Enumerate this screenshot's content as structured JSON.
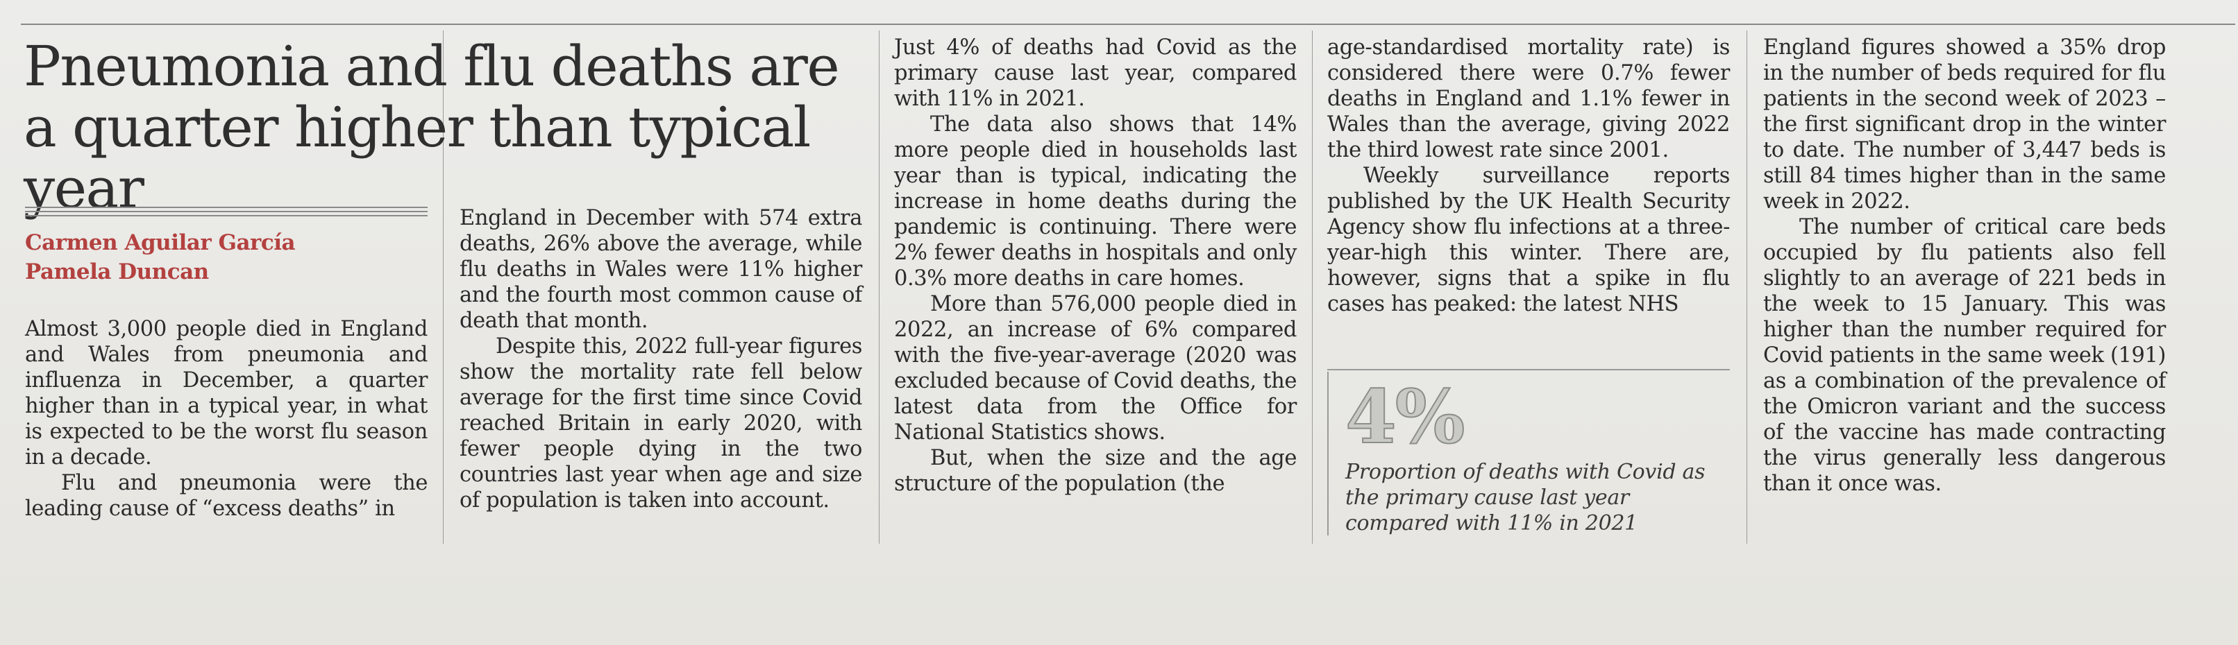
{
  "article": {
    "headline": "Pneumonia and flu deaths are a quarter higher than typical year",
    "authors": [
      "Carmen Aguilar García",
      "Pamela Duncan"
    ],
    "col1": [
      "Almost 3,000 people died in England and Wales from pneumonia and influenza in December, a quarter higher than in a typical year, in what is expected to be the worst flu season in a decade.",
      "Flu and pneumonia were the leading cause of “excess deaths” in"
    ],
    "col2": [
      "England in December with 574 extra deaths, 26% above the average, while flu deaths in Wales were 11% higher and the fourth most common cause of death that month.",
      "Despite this, 2022 full-year figures show the mortality rate fell below average for the first time since Covid reached Britain in early 2020, with fewer people dying in the two countries last year when age and size of population is taken into account."
    ],
    "col3": [
      "Just 4% of deaths had Covid as the primary cause last year, compared with 11% in 2021.",
      "The data also shows that 14% more people died in households last year than is typical, indicating the increase in home deaths during the pandemic is continuing. There were 2% fewer deaths in hospitals and only 0.3% more deaths in care homes.",
      "More than 576,000 people died in 2022, an increase of 6% compared with the five-year-average (2020 was excluded because of Covid deaths, the latest data from the Office for National Statistics shows.",
      "But, when the size and the age structure of the population (the"
    ],
    "col4": [
      "age-standardised mortality rate) is considered there were 0.7% fewer deaths in England and 1.1% fewer in Wales than the average, giving 2022 the third lowest rate since 2001.",
      "Weekly surveillance reports published by the UK Health Security Agency show flu infections at a three-year-high this winter. There are, however, signs that a spike in flu cases has peaked: the latest NHS"
    ],
    "col5": [
      "England figures showed a 35% drop in the number of beds required for flu patients in the second week of 2023 – the first significant drop in the winter to date. The number of 3,447 beds is still 84 times higher than in the same week in 2022.",
      "The number of critical care beds occupied by flu patients also fell slightly to an average of 221 beds in the week to 15 January. This was higher than the number required for Covid patients in the same week (191) as a combination of the prevalence of the Omicron variant and the success of the vaccine has made contracting the virus generally less dangerous than it once was."
    ],
    "pullquote": {
      "figure": "4%",
      "caption": "Proportion of deaths with Covid as the primary cause last year compared with 11% in 2021"
    }
  }
}
